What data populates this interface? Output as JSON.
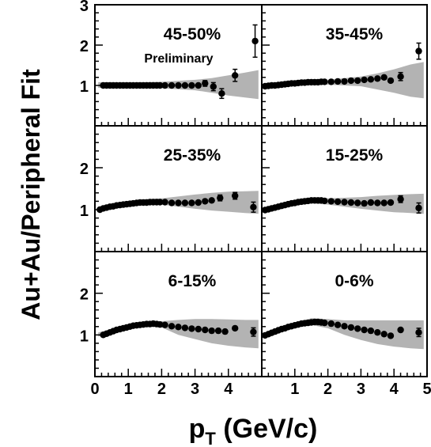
{
  "figure": {
    "ylabel": "Au+Au/Peripheral Fit",
    "xlabel_main": "p",
    "xlabel_sub": "T",
    "xlabel_rest": " (GeV/c)",
    "preliminary": "Preliminary"
  },
  "chart_data": [
    {
      "type": "scatter",
      "label": "45-50%",
      "xlim": [
        0,
        5
      ],
      "ylim": [
        0,
        3
      ],
      "y_ticklabels": [
        "1",
        "2",
        "3"
      ],
      "x_ticklabels": [],
      "points": [
        [
          0.25,
          1.0
        ],
        [
          0.35,
          1.0
        ],
        [
          0.45,
          1.0
        ],
        [
          0.55,
          1.0
        ],
        [
          0.65,
          1.0
        ],
        [
          0.75,
          1.0
        ],
        [
          0.85,
          1.0
        ],
        [
          0.95,
          1.0
        ],
        [
          1.05,
          1.0
        ],
        [
          1.15,
          1.0
        ],
        [
          1.25,
          1.0
        ],
        [
          1.35,
          1.0
        ],
        [
          1.45,
          1.0
        ],
        [
          1.55,
          1.0
        ],
        [
          1.65,
          1.0
        ],
        [
          1.75,
          1.0
        ],
        [
          1.85,
          1.0
        ],
        [
          1.95,
          1.0
        ],
        [
          2.1,
          1.0
        ],
        [
          2.3,
          1.0
        ],
        [
          2.5,
          1.0
        ],
        [
          2.7,
          1.0
        ],
        [
          2.9,
          1.0
        ],
        [
          3.1,
          1.0
        ],
        [
          3.3,
          1.05
        ],
        [
          3.55,
          0.97
        ],
        [
          3.8,
          0.8
        ],
        [
          4.2,
          1.25
        ],
        [
          4.8,
          2.1
        ]
      ],
      "errors": [
        [
          3.3,
          0.07
        ],
        [
          3.55,
          0.1
        ],
        [
          3.8,
          0.12
        ],
        [
          4.2,
          0.15
        ],
        [
          4.8,
          0.4
        ]
      ],
      "band_lower": [
        [
          0.1,
          0.94
        ],
        [
          1.0,
          0.95
        ],
        [
          2.0,
          0.93
        ],
        [
          3.0,
          0.88
        ],
        [
          3.5,
          0.82
        ],
        [
          4.0,
          0.75
        ],
        [
          4.5,
          0.7
        ],
        [
          4.9,
          0.66
        ]
      ],
      "band_upper": [
        [
          0.1,
          1.08
        ],
        [
          1.0,
          1.07
        ],
        [
          2.0,
          1.09
        ],
        [
          3.0,
          1.14
        ],
        [
          3.5,
          1.18
        ],
        [
          4.0,
          1.25
        ],
        [
          4.5,
          1.32
        ],
        [
          4.9,
          1.38
        ]
      ]
    },
    {
      "type": "scatter",
      "label": "35-45%",
      "xlim": [
        0,
        5
      ],
      "ylim": [
        0,
        3
      ],
      "y_ticklabels": [],
      "x_ticklabels": [],
      "points": [
        [
          0.1,
          0.98
        ],
        [
          0.2,
          0.99
        ],
        [
          0.3,
          1.0
        ],
        [
          0.4,
          1.0
        ],
        [
          0.5,
          1.01
        ],
        [
          0.6,
          1.02
        ],
        [
          0.7,
          1.03
        ],
        [
          0.8,
          1.04
        ],
        [
          0.9,
          1.05
        ],
        [
          1.0,
          1.05
        ],
        [
          1.1,
          1.06
        ],
        [
          1.2,
          1.07
        ],
        [
          1.3,
          1.07
        ],
        [
          1.4,
          1.08
        ],
        [
          1.5,
          1.08
        ],
        [
          1.6,
          1.08
        ],
        [
          1.7,
          1.08
        ],
        [
          1.8,
          1.09
        ],
        [
          1.9,
          1.09
        ],
        [
          2.1,
          1.09
        ],
        [
          2.3,
          1.1
        ],
        [
          2.5,
          1.1
        ],
        [
          2.7,
          1.12
        ],
        [
          2.9,
          1.12
        ],
        [
          3.1,
          1.14
        ],
        [
          3.3,
          1.15
        ],
        [
          3.5,
          1.17
        ],
        [
          3.7,
          1.2
        ],
        [
          3.9,
          1.12
        ],
        [
          4.2,
          1.22
        ],
        [
          4.75,
          1.85
        ]
      ],
      "errors": [
        [
          4.2,
          0.1
        ],
        [
          4.75,
          0.2
        ]
      ],
      "band_lower": [
        [
          0.1,
          0.94
        ],
        [
          1.0,
          1.0
        ],
        [
          2.0,
          1.02
        ],
        [
          3.0,
          0.98
        ],
        [
          3.5,
          0.9
        ],
        [
          4.0,
          0.82
        ],
        [
          4.5,
          0.72
        ],
        [
          4.9,
          0.68
        ]
      ],
      "band_upper": [
        [
          0.1,
          1.04
        ],
        [
          1.0,
          1.1
        ],
        [
          2.0,
          1.14
        ],
        [
          3.0,
          1.22
        ],
        [
          3.5,
          1.3
        ],
        [
          4.0,
          1.4
        ],
        [
          4.5,
          1.52
        ],
        [
          4.9,
          1.58
        ]
      ]
    },
    {
      "type": "scatter",
      "label": "25-35%",
      "xlim": [
        0,
        5
      ],
      "ylim": [
        0,
        3
      ],
      "y_ticklabels": [
        "1",
        "2"
      ],
      "x_ticklabels": [],
      "points": [
        [
          0.15,
          1.0
        ],
        [
          0.25,
          1.03
        ],
        [
          0.35,
          1.05
        ],
        [
          0.45,
          1.07
        ],
        [
          0.55,
          1.08
        ],
        [
          0.65,
          1.1
        ],
        [
          0.75,
          1.11
        ],
        [
          0.85,
          1.12
        ],
        [
          0.95,
          1.13
        ],
        [
          1.05,
          1.14
        ],
        [
          1.15,
          1.15
        ],
        [
          1.25,
          1.16
        ],
        [
          1.35,
          1.17
        ],
        [
          1.45,
          1.17
        ],
        [
          1.55,
          1.17
        ],
        [
          1.65,
          1.18
        ],
        [
          1.75,
          1.18
        ],
        [
          1.85,
          1.18
        ],
        [
          1.95,
          1.18
        ],
        [
          2.1,
          1.18
        ],
        [
          2.3,
          1.16
        ],
        [
          2.5,
          1.16
        ],
        [
          2.7,
          1.16
        ],
        [
          2.9,
          1.16
        ],
        [
          3.1,
          1.17
        ],
        [
          3.3,
          1.2
        ],
        [
          3.5,
          1.22
        ],
        [
          3.75,
          1.28
        ],
        [
          4.2,
          1.33
        ],
        [
          4.75,
          1.06
        ]
      ],
      "errors": [
        [
          3.75,
          0.07
        ],
        [
          4.2,
          0.08
        ],
        [
          4.75,
          0.12
        ]
      ],
      "band_lower": [
        [
          0.1,
          0.96
        ],
        [
          1.0,
          1.08
        ],
        [
          1.5,
          1.12
        ],
        [
          2.0,
          1.12
        ],
        [
          3.0,
          1.02
        ],
        [
          3.5,
          0.98
        ],
        [
          4.0,
          0.95
        ],
        [
          4.5,
          0.92
        ],
        [
          4.9,
          0.9
        ]
      ],
      "band_upper": [
        [
          0.1,
          1.05
        ],
        [
          1.0,
          1.2
        ],
        [
          1.5,
          1.25
        ],
        [
          2.0,
          1.27
        ],
        [
          3.0,
          1.36
        ],
        [
          3.5,
          1.4
        ],
        [
          4.0,
          1.43
        ],
        [
          4.5,
          1.44
        ],
        [
          4.9,
          1.45
        ]
      ]
    },
    {
      "type": "scatter",
      "label": "15-25%",
      "xlim": [
        0,
        5
      ],
      "ylim": [
        0,
        3
      ],
      "y_ticklabels": [],
      "x_ticklabels": [],
      "points": [
        [
          0.1,
          0.99
        ],
        [
          0.2,
          1.01
        ],
        [
          0.3,
          1.03
        ],
        [
          0.4,
          1.05
        ],
        [
          0.5,
          1.07
        ],
        [
          0.6,
          1.09
        ],
        [
          0.7,
          1.11
        ],
        [
          0.8,
          1.13
        ],
        [
          0.9,
          1.15
        ],
        [
          1.0,
          1.16
        ],
        [
          1.1,
          1.18
        ],
        [
          1.2,
          1.19
        ],
        [
          1.3,
          1.2
        ],
        [
          1.4,
          1.21
        ],
        [
          1.5,
          1.22
        ],
        [
          1.6,
          1.22
        ],
        [
          1.7,
          1.22
        ],
        [
          1.8,
          1.22
        ],
        [
          1.9,
          1.21
        ],
        [
          2.1,
          1.2
        ],
        [
          2.3,
          1.19
        ],
        [
          2.5,
          1.18
        ],
        [
          2.7,
          1.17
        ],
        [
          2.9,
          1.16
        ],
        [
          3.1,
          1.15
        ],
        [
          3.3,
          1.17
        ],
        [
          3.5,
          1.16
        ],
        [
          3.7,
          1.16
        ],
        [
          3.9,
          1.17
        ],
        [
          4.2,
          1.25
        ],
        [
          4.75,
          1.04
        ]
      ],
      "errors": [
        [
          4.2,
          0.08
        ],
        [
          4.75,
          0.12
        ]
      ],
      "band_lower": [
        [
          0.1,
          0.95
        ],
        [
          1.0,
          1.1
        ],
        [
          1.5,
          1.15
        ],
        [
          2.0,
          1.12
        ],
        [
          3.0,
          1.02
        ],
        [
          3.5,
          0.98
        ],
        [
          4.0,
          0.94
        ],
        [
          4.5,
          0.92
        ],
        [
          4.9,
          0.9
        ]
      ],
      "band_upper": [
        [
          0.1,
          1.04
        ],
        [
          1.0,
          1.22
        ],
        [
          1.5,
          1.28
        ],
        [
          2.0,
          1.27
        ],
        [
          3.0,
          1.3
        ],
        [
          3.5,
          1.33
        ],
        [
          4.0,
          1.35
        ],
        [
          4.5,
          1.37
        ],
        [
          4.9,
          1.38
        ]
      ]
    },
    {
      "type": "scatter",
      "label": "6-15%",
      "xlim": [
        0,
        5
      ],
      "ylim": [
        0,
        3
      ],
      "y_ticklabels": [
        "1",
        "2"
      ],
      "x_ticklabels": [
        "0",
        "1",
        "2",
        "3",
        "4"
      ],
      "points": [
        [
          0.25,
          1.0
        ],
        [
          0.35,
          1.03
        ],
        [
          0.45,
          1.06
        ],
        [
          0.55,
          1.09
        ],
        [
          0.65,
          1.12
        ],
        [
          0.75,
          1.14
        ],
        [
          0.85,
          1.16
        ],
        [
          0.95,
          1.18
        ],
        [
          1.05,
          1.2
        ],
        [
          1.15,
          1.22
        ],
        [
          1.25,
          1.23
        ],
        [
          1.35,
          1.24
        ],
        [
          1.45,
          1.25
        ],
        [
          1.55,
          1.26
        ],
        [
          1.65,
          1.26
        ],
        [
          1.75,
          1.27
        ],
        [
          1.85,
          1.26
        ],
        [
          1.95,
          1.25
        ],
        [
          2.1,
          1.24
        ],
        [
          2.3,
          1.21
        ],
        [
          2.5,
          1.19
        ],
        [
          2.7,
          1.17
        ],
        [
          2.9,
          1.15
        ],
        [
          3.1,
          1.14
        ],
        [
          3.3,
          1.12
        ],
        [
          3.5,
          1.1
        ],
        [
          3.7,
          1.1
        ],
        [
          3.9,
          1.08
        ],
        [
          4.2,
          1.16
        ],
        [
          4.75,
          1.07
        ]
      ],
      "errors": [
        [
          4.75,
          0.1
        ]
      ],
      "band_lower": [
        [
          0.1,
          0.96
        ],
        [
          1.0,
          1.14
        ],
        [
          1.5,
          1.2
        ],
        [
          2.0,
          1.18
        ],
        [
          2.5,
          1.0
        ],
        [
          3.0,
          0.9
        ],
        [
          3.5,
          0.8
        ],
        [
          4.0,
          0.74
        ],
        [
          4.5,
          0.7
        ],
        [
          4.9,
          0.68
        ]
      ],
      "band_upper": [
        [
          0.1,
          1.06
        ],
        [
          1.0,
          1.25
        ],
        [
          1.5,
          1.33
        ],
        [
          2.0,
          1.33
        ],
        [
          2.5,
          1.36
        ],
        [
          3.0,
          1.38
        ],
        [
          3.5,
          1.38
        ],
        [
          4.0,
          1.37
        ],
        [
          4.5,
          1.36
        ],
        [
          4.9,
          1.36
        ]
      ]
    },
    {
      "type": "scatter",
      "label": "0-6%",
      "xlim": [
        0,
        5
      ],
      "ylim": [
        0,
        3
      ],
      "y_ticklabels": [],
      "x_ticklabels": [
        "1",
        "2",
        "3",
        "4",
        "5"
      ],
      "points": [
        [
          0.1,
          0.99
        ],
        [
          0.2,
          1.02
        ],
        [
          0.3,
          1.05
        ],
        [
          0.4,
          1.08
        ],
        [
          0.5,
          1.11
        ],
        [
          0.6,
          1.14
        ],
        [
          0.7,
          1.16
        ],
        [
          0.8,
          1.19
        ],
        [
          0.9,
          1.21
        ],
        [
          1.0,
          1.23
        ],
        [
          1.1,
          1.25
        ],
        [
          1.2,
          1.27
        ],
        [
          1.3,
          1.28
        ],
        [
          1.4,
          1.29
        ],
        [
          1.5,
          1.3
        ],
        [
          1.6,
          1.31
        ],
        [
          1.7,
          1.31
        ],
        [
          1.8,
          1.3
        ],
        [
          1.9,
          1.29
        ],
        [
          2.1,
          1.27
        ],
        [
          2.3,
          1.24
        ],
        [
          2.5,
          1.21
        ],
        [
          2.7,
          1.18
        ],
        [
          2.9,
          1.15
        ],
        [
          3.1,
          1.12
        ],
        [
          3.3,
          1.1
        ],
        [
          3.5,
          1.06
        ],
        [
          3.7,
          1.02
        ],
        [
          3.9,
          0.98
        ],
        [
          4.2,
          1.12
        ],
        [
          4.75,
          1.06
        ]
      ],
      "errors": [
        [
          4.75,
          0.1
        ]
      ],
      "band_lower": [
        [
          0.1,
          0.95
        ],
        [
          1.0,
          1.17
        ],
        [
          1.5,
          1.24
        ],
        [
          2.0,
          1.16
        ],
        [
          2.5,
          1.0
        ],
        [
          3.0,
          0.88
        ],
        [
          3.5,
          0.78
        ],
        [
          4.0,
          0.72
        ],
        [
          4.5,
          0.68
        ],
        [
          4.9,
          0.66
        ]
      ],
      "band_upper": [
        [
          0.1,
          1.05
        ],
        [
          1.0,
          1.3
        ],
        [
          1.5,
          1.4
        ],
        [
          2.0,
          1.38
        ],
        [
          2.5,
          1.35
        ],
        [
          3.0,
          1.35
        ],
        [
          3.5,
          1.35
        ],
        [
          4.0,
          1.35
        ],
        [
          4.5,
          1.35
        ],
        [
          4.9,
          1.35
        ]
      ]
    }
  ]
}
